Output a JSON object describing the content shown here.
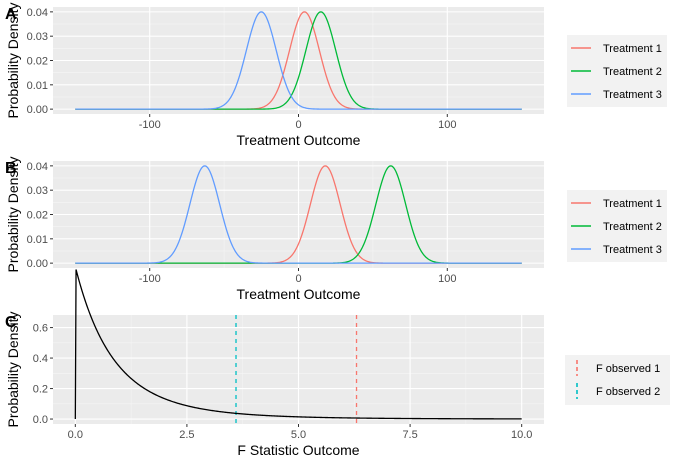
{
  "chart_data": [
    {
      "type": "line",
      "panel_label": "A",
      "xlabel": "Treatment Outcome",
      "ylabel": "Probability Density",
      "xlim": [
        -150,
        150
      ],
      "ylim": [
        0,
        0.04
      ],
      "x_ticks": [
        -100,
        0,
        100
      ],
      "x_tick_labels": [
        "-100",
        "0",
        "100"
      ],
      "y_ticks": [
        0,
        0.01,
        0.02,
        0.03,
        0.04
      ],
      "y_tick_labels": [
        "0.00",
        "0.01",
        "0.02",
        "0.03",
        "0.04"
      ],
      "grid": true,
      "legend_position": "right",
      "series": [
        {
          "name": "Treatment 1",
          "color": "#F8766D",
          "distribution": "normal",
          "mean": 4,
          "sd": 10,
          "peak": 0.04
        },
        {
          "name": "Treatment 2",
          "color": "#00BA38",
          "distribution": "normal",
          "mean": 15,
          "sd": 10,
          "peak": 0.04
        },
        {
          "name": "Treatment 3",
          "color": "#619CFF",
          "distribution": "normal",
          "mean": -25,
          "sd": 10,
          "peak": 0.04
        }
      ]
    },
    {
      "type": "line",
      "panel_label": "B",
      "xlabel": "Treatment Outcome",
      "ylabel": "Probability Density",
      "xlim": [
        -150,
        150
      ],
      "ylim": [
        0,
        0.04
      ],
      "x_ticks": [
        -100,
        0,
        100
      ],
      "x_tick_labels": [
        "-100",
        "0",
        "100"
      ],
      "y_ticks": [
        0,
        0.01,
        0.02,
        0.03,
        0.04
      ],
      "y_tick_labels": [
        "0.00",
        "0.01",
        "0.02",
        "0.03",
        "0.04"
      ],
      "grid": true,
      "legend_position": "right",
      "series": [
        {
          "name": "Treatment 1",
          "color": "#F8766D",
          "distribution": "normal",
          "mean": 18,
          "sd": 10,
          "peak": 0.04
        },
        {
          "name": "Treatment 2",
          "color": "#00BA38",
          "distribution": "normal",
          "mean": 62,
          "sd": 10,
          "peak": 0.04
        },
        {
          "name": "Treatment 3",
          "color": "#619CFF",
          "distribution": "normal",
          "mean": -63,
          "sd": 10,
          "peak": 0.04
        }
      ]
    },
    {
      "type": "line",
      "panel_label": "C",
      "xlabel": "F Statistic Outcome",
      "ylabel": "Probability Density",
      "xlim": [
        0,
        10
      ],
      "ylim": [
        0,
        0.65
      ],
      "x_ticks": [
        0,
        2.5,
        5,
        7.5,
        10
      ],
      "x_tick_labels": [
        "0.0",
        "2.5",
        "5.0",
        "7.5",
        "10.0"
      ],
      "y_ticks": [
        0,
        0.2,
        0.4,
        0.6
      ],
      "y_tick_labels": [
        "0.0",
        "0.2",
        "0.4",
        "0.6"
      ],
      "grid": true,
      "legend_position": "right",
      "series": [
        {
          "name": "",
          "color": "#000000",
          "distribution": "f",
          "df1": 2,
          "df2": 12
        }
      ],
      "vlines": [
        {
          "name": "F observed 1",
          "x": 6.3,
          "color": "#F8766D",
          "style": "dashed"
        },
        {
          "name": "F observed 2",
          "x": 3.6,
          "color": "#00BFC4",
          "style": "dashed"
        }
      ]
    }
  ]
}
